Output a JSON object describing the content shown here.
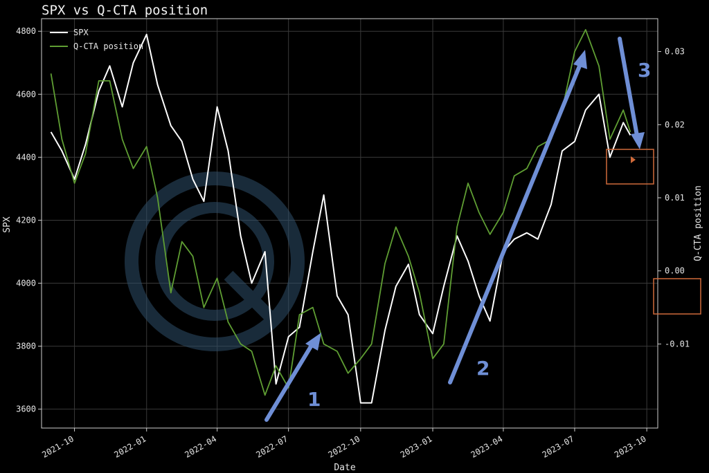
{
  "chart_data": {
    "type": "line",
    "title": "SPX vs Q-CTA position",
    "xlabel": "Date",
    "ylabel_left": "SPX",
    "ylabel_right": "Q-CTA position",
    "x_tick_labels": [
      "2021-10",
      "2022-01",
      "2022-04",
      "2022-07",
      "2022-10",
      "2023-01",
      "2023-04",
      "2023-07",
      "2023-10"
    ],
    "xlim": [
      "2021-08-20",
      "2023-10-15"
    ],
    "ylim_left": [
      3540,
      4840
    ],
    "ylim_right": [
      -0.0215,
      0.0345
    ],
    "left_ticks": [
      3600,
      3800,
      4000,
      4200,
      4400,
      4600,
      4800
    ],
    "right_ticks": [
      -0.01,
      0.0,
      0.01,
      0.02,
      0.03
    ],
    "right_tick_labels": [
      "-0.01",
      "0.00",
      "0.01",
      "0.02",
      "0.03"
    ],
    "grid": true,
    "legend_position": "top-left",
    "series": [
      {
        "name": "SPX",
        "axis": "left",
        "color": "#ffffff",
        "points": [
          [
            "2021-09-01",
            4480
          ],
          [
            "2021-09-15",
            4420
          ],
          [
            "2021-10-01",
            4330
          ],
          [
            "2021-10-15",
            4440
          ],
          [
            "2021-11-01",
            4610
          ],
          [
            "2021-11-15",
            4690
          ],
          [
            "2021-12-01",
            4560
          ],
          [
            "2021-12-15",
            4700
          ],
          [
            "2022-01-01",
            4790
          ],
          [
            "2022-01-15",
            4630
          ],
          [
            "2022-02-01",
            4500
          ],
          [
            "2022-02-15",
            4450
          ],
          [
            "2022-03-01",
            4330
          ],
          [
            "2022-03-15",
            4260
          ],
          [
            "2022-04-01",
            4560
          ],
          [
            "2022-04-15",
            4420
          ],
          [
            "2022-05-01",
            4150
          ],
          [
            "2022-05-15",
            4000
          ],
          [
            "2022-06-01",
            4100
          ],
          [
            "2022-06-15",
            3680
          ],
          [
            "2022-07-01",
            3830
          ],
          [
            "2022-07-15",
            3860
          ],
          [
            "2022-08-01",
            4100
          ],
          [
            "2022-08-15",
            4280
          ],
          [
            "2022-09-01",
            3960
          ],
          [
            "2022-09-15",
            3900
          ],
          [
            "2022-10-01",
            3620
          ],
          [
            "2022-10-15",
            3620
          ],
          [
            "2022-11-01",
            3850
          ],
          [
            "2022-11-15",
            3990
          ],
          [
            "2022-12-01",
            4060
          ],
          [
            "2022-12-15",
            3900
          ],
          [
            "2023-01-01",
            3840
          ],
          [
            "2023-01-15",
            3990
          ],
          [
            "2023-02-01",
            4150
          ],
          [
            "2023-02-15",
            4070
          ],
          [
            "2023-03-01",
            3960
          ],
          [
            "2023-03-15",
            3880
          ],
          [
            "2023-04-01",
            4100
          ],
          [
            "2023-04-15",
            4140
          ],
          [
            "2023-05-01",
            4160
          ],
          [
            "2023-05-15",
            4140
          ],
          [
            "2023-06-01",
            4250
          ],
          [
            "2023-06-15",
            4420
          ],
          [
            "2023-07-01",
            4450
          ],
          [
            "2023-07-15",
            4550
          ],
          [
            "2023-08-01",
            4600
          ],
          [
            "2023-08-15",
            4400
          ],
          [
            "2023-09-01",
            4510
          ],
          [
            "2023-09-10",
            4470
          ]
        ]
      },
      {
        "name": "Q-CTA position",
        "axis": "right",
        "color": "#5f9e33",
        "points": [
          [
            "2021-09-01",
            0.027
          ],
          [
            "2021-09-15",
            0.018
          ],
          [
            "2021-10-01",
            0.012
          ],
          [
            "2021-10-15",
            0.016
          ],
          [
            "2021-11-01",
            0.026
          ],
          [
            "2021-11-15",
            0.026
          ],
          [
            "2021-12-01",
            0.018
          ],
          [
            "2021-12-15",
            0.014
          ],
          [
            "2022-01-01",
            0.017
          ],
          [
            "2022-01-15",
            0.01
          ],
          [
            "2022-02-01",
            -0.003
          ],
          [
            "2022-02-15",
            0.004
          ],
          [
            "2022-03-01",
            0.002
          ],
          [
            "2022-03-15",
            -0.005
          ],
          [
            "2022-04-01",
            -0.001
          ],
          [
            "2022-04-15",
            -0.007
          ],
          [
            "2022-05-01",
            -0.01
          ],
          [
            "2022-05-15",
            -0.011
          ],
          [
            "2022-06-01",
            -0.017
          ],
          [
            "2022-06-15",
            -0.013
          ],
          [
            "2022-07-01",
            -0.016
          ],
          [
            "2022-07-15",
            -0.006
          ],
          [
            "2022-08-01",
            -0.005
          ],
          [
            "2022-08-15",
            -0.01
          ],
          [
            "2022-09-01",
            -0.011
          ],
          [
            "2022-09-15",
            -0.014
          ],
          [
            "2022-10-01",
            -0.012
          ],
          [
            "2022-10-15",
            -0.01
          ],
          [
            "2022-11-01",
            0.001
          ],
          [
            "2022-11-15",
            0.006
          ],
          [
            "2022-12-01",
            0.002
          ],
          [
            "2022-12-15",
            -0.003
          ],
          [
            "2023-01-01",
            -0.012
          ],
          [
            "2023-01-15",
            -0.01
          ],
          [
            "2023-02-01",
            0.006
          ],
          [
            "2023-02-15",
            0.012
          ],
          [
            "2023-03-01",
            0.008
          ],
          [
            "2023-03-15",
            0.005
          ],
          [
            "2023-04-01",
            0.008
          ],
          [
            "2023-04-15",
            0.013
          ],
          [
            "2023-05-01",
            0.014
          ],
          [
            "2023-05-15",
            0.017
          ],
          [
            "2023-06-01",
            0.018
          ],
          [
            "2023-06-15",
            0.022
          ],
          [
            "2023-07-01",
            0.03
          ],
          [
            "2023-07-15",
            0.033
          ],
          [
            "2023-08-01",
            0.028
          ],
          [
            "2023-08-15",
            0.018
          ],
          [
            "2023-09-01",
            0.022
          ],
          [
            "2023-09-10",
            0.019
          ]
        ]
      }
    ],
    "annotations": [
      {
        "label": "1",
        "color": "#6f8fd6"
      },
      {
        "label": "2",
        "color": "#6f8fd6"
      },
      {
        "label": "3",
        "color": "#6f8fd6"
      }
    ]
  }
}
